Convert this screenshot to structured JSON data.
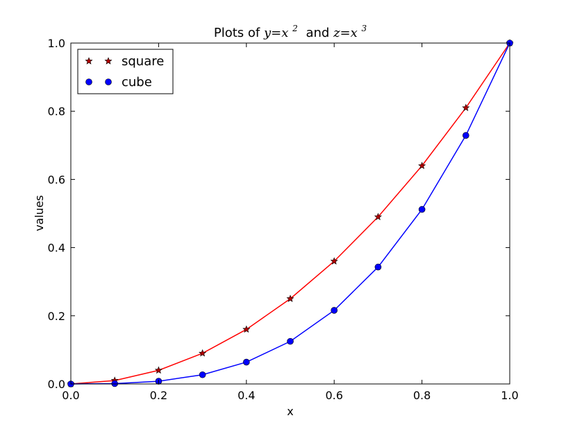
{
  "chart_data": {
    "type": "line",
    "title": {
      "prefix": "Plots of ",
      "math1_base": "y=x",
      "math1_exp": "2",
      "middle": "and ",
      "math2_base": "z=x",
      "math2_exp": "3"
    },
    "xlabel": "x",
    "ylabel": "values",
    "xlim": [
      0.0,
      1.0
    ],
    "ylim": [
      0.0,
      1.0
    ],
    "xticks": [
      "0.0",
      "0.2",
      "0.4",
      "0.6",
      "0.8",
      "1.0"
    ],
    "yticks": [
      "0.0",
      "0.2",
      "0.4",
      "0.6",
      "0.8",
      "1.0"
    ],
    "grid": false,
    "legend_position": "upper-left",
    "x": [
      0.0,
      0.1,
      0.2,
      0.3,
      0.4,
      0.5,
      0.6,
      0.7,
      0.8,
      0.9,
      1.0
    ],
    "series": [
      {
        "name": "square",
        "values": [
          0.0,
          0.01,
          0.04,
          0.09,
          0.16,
          0.25,
          0.36,
          0.49,
          0.64,
          0.81,
          1.0
        ],
        "line_color": "#ff0000",
        "marker": "star",
        "marker_color": "#b00000"
      },
      {
        "name": "cube",
        "values": [
          0.0,
          0.001,
          0.008,
          0.027,
          0.064,
          0.125,
          0.216,
          0.343,
          0.512,
          0.729,
          1.0
        ],
        "line_color": "#0000ff",
        "marker": "circle",
        "marker_color": "#0000ff"
      }
    ]
  }
}
